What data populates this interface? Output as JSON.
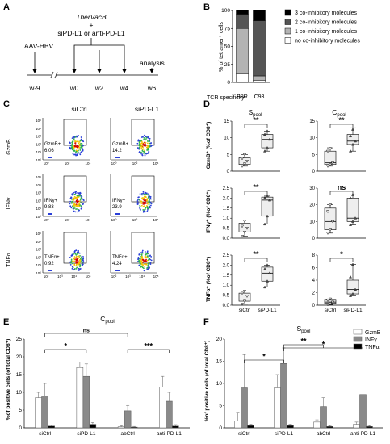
{
  "panel_letters": {
    "A": "A",
    "B": "B",
    "C": "C",
    "D": "D",
    "E": "E",
    "F": "F"
  },
  "panelA": {
    "therapy": "TherVacB",
    "plus": "+",
    "treatment": "siPD-L1 or anti-PD-L1",
    "infection": "AAV-HBV",
    "analysis": "analysis",
    "timepoints": [
      "w-9",
      "w0",
      "w2",
      "w4",
      "w6"
    ]
  },
  "panelB": {
    "ylabel": "% of tetramer⁺ cells",
    "xlabel": "TCR specificity:",
    "legend": [
      "3 co-inhibitory molecules",
      "2 co-inhibitory molecules",
      "1 co-inhibitory molecules",
      "no co-inhibitory molecules"
    ],
    "legend_colors": [
      "#000000",
      "#555555",
      "#b3b3b3",
      "#ffffff"
    ]
  },
  "panelC": {
    "col_titles": [
      "siCtrl",
      "siPD-L1"
    ],
    "row_labels": [
      "GzmB",
      "IFNγ",
      "TNFα"
    ],
    "gates": [
      [
        "GzmB+",
        "6.06",
        "GzmB+",
        "14.2"
      ],
      [
        "IFNγ+",
        "9.83",
        "IFNγ+",
        "23.9"
      ],
      [
        "TNFα+",
        "0.92",
        "TNFα+",
        "4.24"
      ]
    ],
    "yticks": [
      "10⁵",
      "10⁴",
      "10³",
      "10²",
      "10¹",
      "10⁰"
    ],
    "xticks": [
      "10⁰",
      "10²",
      "10⁴"
    ],
    "xticks_full": [
      "10²",
      "10³",
      "10⁴",
      "10⁵"
    ]
  },
  "panelD": {
    "col_titles": [
      "S",
      "C"
    ],
    "col_subs": [
      "pool",
      "pool"
    ],
    "row_ylabels": [
      "GzmB⁺ (%of CD8⁺)",
      "IFNγ⁺ (%of CD8⁺)",
      "TNFα⁺ (%of CD8⁺)"
    ],
    "xcats": [
      "siCtrl",
      "siPD-L1"
    ],
    "sig": [
      [
        "**",
        "**"
      ],
      [
        "**",
        "ns"
      ],
      [
        "**",
        "*"
      ]
    ]
  },
  "panelE": {
    "title": "C",
    "title_sub": "pool",
    "ylabel": "%of positive cells (of total CD8⁺)",
    "categories": [
      "siCtrl",
      "siPD-L1",
      "abCtrl",
      "anti-PD-L1"
    ],
    "sig": [
      "*",
      "ns",
      "***"
    ]
  },
  "panelF": {
    "title": "S",
    "title_sub": "pool",
    "ylabel": "%of positive cells (of total CD8⁺)",
    "categories": [
      "siCtrl",
      "siPD-L1",
      "abCtrl",
      "anti-PD-L1"
    ],
    "sig": [
      "*",
      "**",
      "*"
    ],
    "legend": [
      "GzmB",
      "INFγ",
      "TNFα"
    ],
    "legend_colors": [
      "#ffffff",
      "#8a8a8a",
      "#000000"
    ]
  },
  "chart_data": [
    {
      "type": "bar",
      "title": "",
      "xlabel": "TCR specificity:",
      "ylabel": "% of tetramer⁺ cells",
      "categories": [
        "B8R",
        "C93"
      ],
      "ylim": [
        0,
        100
      ],
      "stacked": true,
      "series": [
        {
          "name": "no co-inhibitory molecules",
          "values": [
            12,
            3
          ]
        },
        {
          "name": "1 co-inhibitory molecules",
          "values": [
            63,
            6
          ]
        },
        {
          "name": "2 co-inhibitory molecules",
          "values": [
            20,
            77
          ]
        },
        {
          "name": "3 co-inhibitory molecules",
          "values": [
            5,
            14
          ]
        }
      ]
    },
    {
      "type": "box",
      "title": "Spool GzmB",
      "ylabel": "GzmB⁺ (%of CD8⁺)",
      "categories": [
        "siCtrl",
        "siPD-L1"
      ],
      "ylim": [
        0,
        15
      ],
      "yticks": [
        0,
        5,
        10,
        15
      ],
      "boxes": [
        {
          "min": 1.5,
          "q1": 2.0,
          "median": 3.0,
          "q3": 4.0,
          "max": 5.0,
          "points": [
            1.5,
            2.2,
            3.0,
            3.8,
            5.0
          ]
        },
        {
          "min": 6.0,
          "q1": 7.0,
          "median": 9.5,
          "q3": 11.0,
          "max": 12.0,
          "points": [
            6.0,
            7.0,
            9.5,
            11.0,
            12.0
          ]
        }
      ]
    },
    {
      "type": "box",
      "title": "Cpool GzmB",
      "categories": [
        "siCtrl",
        "siPD-L1"
      ],
      "ylim": [
        0,
        15
      ],
      "yticks": [
        0,
        5,
        10,
        15
      ],
      "boxes": [
        {
          "min": 1.5,
          "q1": 2.0,
          "median": 2.5,
          "q3": 6.0,
          "max": 7.0,
          "points": [
            1.5,
            2.0,
            2.5,
            6.0,
            6.8
          ]
        },
        {
          "min": 6.0,
          "q1": 8.0,
          "median": 9.0,
          "q3": 11.0,
          "max": 13.0,
          "points": [
            6.0,
            8.0,
            9.0,
            10.5,
            12.5
          ]
        }
      ]
    },
    {
      "type": "box",
      "title": "Spool IFNγ",
      "ylabel": "IFNγ⁺ (%of CD8⁺)",
      "categories": [
        "siCtrl",
        "siPD-L1"
      ],
      "ylim": [
        0,
        2.5
      ],
      "yticks": [
        0.0,
        0.5,
        1.0,
        1.5,
        2.0,
        2.5
      ],
      "boxes": [
        {
          "min": 0.1,
          "q1": 0.3,
          "median": 0.5,
          "q3": 0.75,
          "max": 0.9,
          "points": [
            0.1,
            0.3,
            0.5,
            0.6,
            0.85
          ]
        },
        {
          "min": 0.7,
          "q1": 1.1,
          "median": 1.9,
          "q3": 2.05,
          "max": 2.1,
          "points": [
            0.7,
            1.1,
            1.9,
            2.0,
            2.1
          ]
        }
      ]
    },
    {
      "type": "box",
      "title": "Cpool IFNγ",
      "categories": [
        "siCtrl",
        "siPD-L1"
      ],
      "ylim": [
        0,
        30
      ],
      "yticks": [
        0,
        10,
        20,
        30
      ],
      "boxes": [
        {
          "min": 3,
          "q1": 5,
          "median": 10,
          "q3": 18,
          "max": 20,
          "points": [
            3,
            5,
            10,
            16,
            20
          ]
        },
        {
          "min": 8,
          "q1": 10,
          "median": 12,
          "q3": 24,
          "max": 26,
          "points": [
            8,
            10,
            12,
            24,
            26
          ]
        }
      ]
    },
    {
      "type": "box",
      "title": "Spool TNFα",
      "ylabel": "TNFα⁺ (%of CD8⁺)",
      "categories": [
        "siCtrl",
        "siPD-L1"
      ],
      "ylim": [
        0,
        2.5
      ],
      "yticks": [
        0.0,
        0.5,
        1.0,
        1.5,
        2.0,
        2.5
      ],
      "boxes": [
        {
          "min": 0.05,
          "q1": 0.2,
          "median": 0.5,
          "q3": 0.6,
          "max": 0.7,
          "points": [
            0.05,
            0.2,
            0.45,
            0.6,
            0.7
          ]
        },
        {
          "min": 0.9,
          "q1": 1.2,
          "median": 1.6,
          "q3": 1.9,
          "max": 2.0,
          "points": [
            0.9,
            1.2,
            1.6,
            1.8,
            2.0
          ]
        }
      ]
    },
    {
      "type": "box",
      "title": "Cpool TNFα",
      "categories": [
        "siCtrl",
        "siPD-L1"
      ],
      "ylim": [
        0,
        8
      ],
      "yticks": [
        0,
        2,
        4,
        6,
        8
      ],
      "boxes": [
        {
          "min": 0.1,
          "q1": 0.3,
          "median": 0.5,
          "q3": 0.8,
          "max": 1.0,
          "points": [
            0.1,
            0.3,
            0.5,
            0.8,
            1.0
          ]
        },
        {
          "min": 1.5,
          "q1": 1.8,
          "median": 2.5,
          "q3": 4.0,
          "max": 6.5,
          "points": [
            1.5,
            1.8,
            2.5,
            4.5,
            6.5
          ]
        }
      ]
    },
    {
      "type": "bar",
      "title": "Cpool",
      "ylabel": "%of positive cells (of total CD8⁺)",
      "categories": [
        "siCtrl",
        "siPD-L1",
        "abCtrl",
        "anti-PD-L1"
      ],
      "ylim": [
        0,
        25
      ],
      "yticks": [
        0,
        5,
        10,
        15,
        20,
        25
      ],
      "series": [
        {
          "name": "GzmB",
          "values": [
            8.5,
            17,
            0.3,
            11.5
          ],
          "errors": [
            1.5,
            1.5,
            0.3,
            3
          ]
        },
        {
          "name": "INFγ",
          "values": [
            9,
            14.5,
            4.8,
            7.5
          ],
          "errors": [
            3.5,
            3.5,
            1.5,
            2.5
          ]
        },
        {
          "name": "TNFα",
          "values": [
            0.5,
            1.0,
            0.2,
            0.5
          ],
          "errors": [
            0.3,
            0.5,
            0.2,
            0.4
          ]
        }
      ]
    },
    {
      "type": "bar",
      "title": "Spool",
      "ylabel": "%of positive cells (of total CD8⁺)",
      "categories": [
        "siCtrl",
        "siPD-L1",
        "abCtrl",
        "anti-PD-L1"
      ],
      "ylim": [
        0,
        20
      ],
      "yticks": [
        0,
        5,
        10,
        15,
        20
      ],
      "series": [
        {
          "name": "GzmB",
          "values": [
            1.5,
            9,
            1.3,
            0.8
          ],
          "errors": [
            2,
            3,
            0.5,
            0.5
          ]
        },
        {
          "name": "INFγ",
          "values": [
            9,
            14.5,
            4.8,
            7.5
          ],
          "errors": [
            7.5,
            3.5,
            2,
            3.5
          ]
        },
        {
          "name": "TNFα",
          "values": [
            0.5,
            0.5,
            0.3,
            0.3
          ],
          "errors": [
            0.3,
            0.3,
            0.2,
            0.2
          ]
        }
      ]
    }
  ]
}
